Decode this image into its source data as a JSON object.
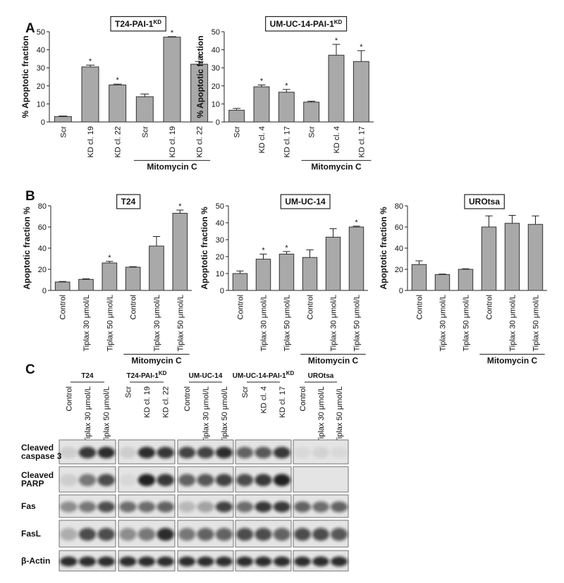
{
  "panels": [
    "A",
    "B",
    "C"
  ],
  "chart_data": [
    {
      "type": "bar",
      "title": "T24-PAI-1",
      "title_sup": "KD",
      "y_label": "% Apoptotic fraction",
      "categories": [
        "Scr",
        "KD cl. 19",
        "KD cl. 22",
        "Scr",
        "KD cl. 19",
        "KD cl. 22"
      ],
      "values": [
        3,
        30.5,
        20.5,
        14,
        47,
        32
      ],
      "errors": [
        0.3,
        1,
        0.5,
        1.5,
        0.3,
        1.5
      ],
      "marker": "*",
      "significant": [
        false,
        true,
        true,
        false,
        true,
        true
      ],
      "bracket": {
        "label": "Mitomycin C",
        "from": 3,
        "to": 5
      },
      "color": "#a9a9a9",
      "ylim": [
        0,
        50
      ],
      "yticks": [
        0,
        10,
        20,
        30,
        40,
        50
      ]
    },
    {
      "type": "bar",
      "title": "UM-UC-14-PAI-1",
      "title_sup": "KD",
      "y_label": "% Apoptotic fraction",
      "categories": [
        "Scr",
        "KD cl. 4",
        "KD cl. 17",
        "Scr",
        "KD cl. 4",
        "KD cl. 17"
      ],
      "values": [
        6.5,
        19.5,
        16.5,
        11,
        37,
        33.5
      ],
      "errors": [
        1,
        1,
        1.5,
        0.5,
        6,
        6
      ],
      "marker": "*",
      "significant": [
        false,
        true,
        true,
        false,
        true,
        true
      ],
      "bracket": {
        "label": "Mitomycin C",
        "from": 3,
        "to": 5
      },
      "color": "#a9a9a9",
      "ylim": [
        0,
        50
      ],
      "yticks": [
        0,
        10,
        20,
        30,
        40,
        50
      ]
    },
    {
      "type": "bar",
      "title": "T24",
      "y_label": "Apoptotic fraction %",
      "categories": [
        "Control",
        "Tiplax 30 μmol/L",
        "Tiplax 50 μmol/L",
        "Control",
        "Tiplax 30 μmol/L",
        "Tiplax 50 μmol/L"
      ],
      "values": [
        8,
        10.5,
        26,
        22,
        42,
        73
      ],
      "errors": [
        0.5,
        0.5,
        1.5,
        0.5,
        9,
        3
      ],
      "marker": "*",
      "significant": [
        false,
        false,
        true,
        false,
        false,
        true
      ],
      "bracket": {
        "label": "Mitomycin C",
        "from": 3,
        "to": 5
      },
      "color": "#a9a9a9",
      "ylim": [
        0,
        80
      ],
      "yticks": [
        0,
        20,
        40,
        60,
        80
      ]
    },
    {
      "type": "bar",
      "title": "UM-UC-14",
      "y_label": "Apoptotic fraction %",
      "categories": [
        "Control",
        "Tiplax 30 μmol/L",
        "Tiplax 50 μmol/L",
        "Control",
        "Tiplax 30 μmol/L",
        "Tiplax 50 μmol/L"
      ],
      "values": [
        10,
        18.5,
        21.5,
        19.5,
        31.5,
        37.5
      ],
      "errors": [
        1.5,
        3,
        1.5,
        4.5,
        5,
        0.5
      ],
      "marker": "*",
      "significant": [
        false,
        true,
        true,
        false,
        false,
        true
      ],
      "bracket": {
        "label": "Mitomycin C",
        "from": 3,
        "to": 5
      },
      "color": "#a9a9a9",
      "ylim": [
        0,
        50
      ],
      "yticks": [
        0,
        10,
        20,
        30,
        40,
        50
      ]
    },
    {
      "type": "bar",
      "title": "UROtsa",
      "y_label": "Apoptotic fraction %",
      "categories": [
        "Control",
        "Tiplax 30 μmol/L",
        "Tiplax 50 μmol/L",
        "Control",
        "Tiplax 30 μmol/L",
        "Tiplax 50 μmol/L"
      ],
      "values": [
        24.5,
        15,
        20,
        60,
        63.5,
        62.5
      ],
      "errors": [
        3.5,
        0.5,
        0.5,
        10.5,
        7.5,
        8
      ],
      "bracket": {
        "label": "Mitomycin C",
        "from": 3,
        "to": 5
      },
      "color": "#a9a9a9",
      "ylim": [
        0,
        80
      ],
      "yticks": [
        0,
        20,
        40,
        60,
        80
      ]
    }
  ],
  "blot": {
    "groups": [
      {
        "name": "T24",
        "lanes": [
          "Control",
          "Tiplax 30 μmol/L",
          "Tiplax 50 μmol/L"
        ]
      },
      {
        "name": "T24-PAI-1",
        "name_sup": "KD",
        "lanes": [
          "Scr",
          "KD cl. 19",
          "KD cl. 22"
        ]
      },
      {
        "name": "UM-UC-14",
        "lanes": [
          "Control",
          "Tiplax 30 μmol/L",
          "Tiplax 50 μmol/L"
        ]
      },
      {
        "name": "UM-UC-14-PAI-1",
        "name_sup": "KD",
        "lanes": [
          "Scr",
          "KD cl. 4",
          "KD cl. 17"
        ]
      },
      {
        "name": "UROtsa",
        "lanes": [
          "Control",
          "Tiplax 30 μmol/L",
          "Tiplax 50 μmol/L"
        ]
      }
    ],
    "rows": [
      [
        "Cleaved",
        "caspase 3"
      ],
      [
        "Cleaved",
        "PARP"
      ],
      [
        "Fas"
      ],
      [
        "FasL"
      ],
      [
        "β-Actin"
      ]
    ]
  }
}
